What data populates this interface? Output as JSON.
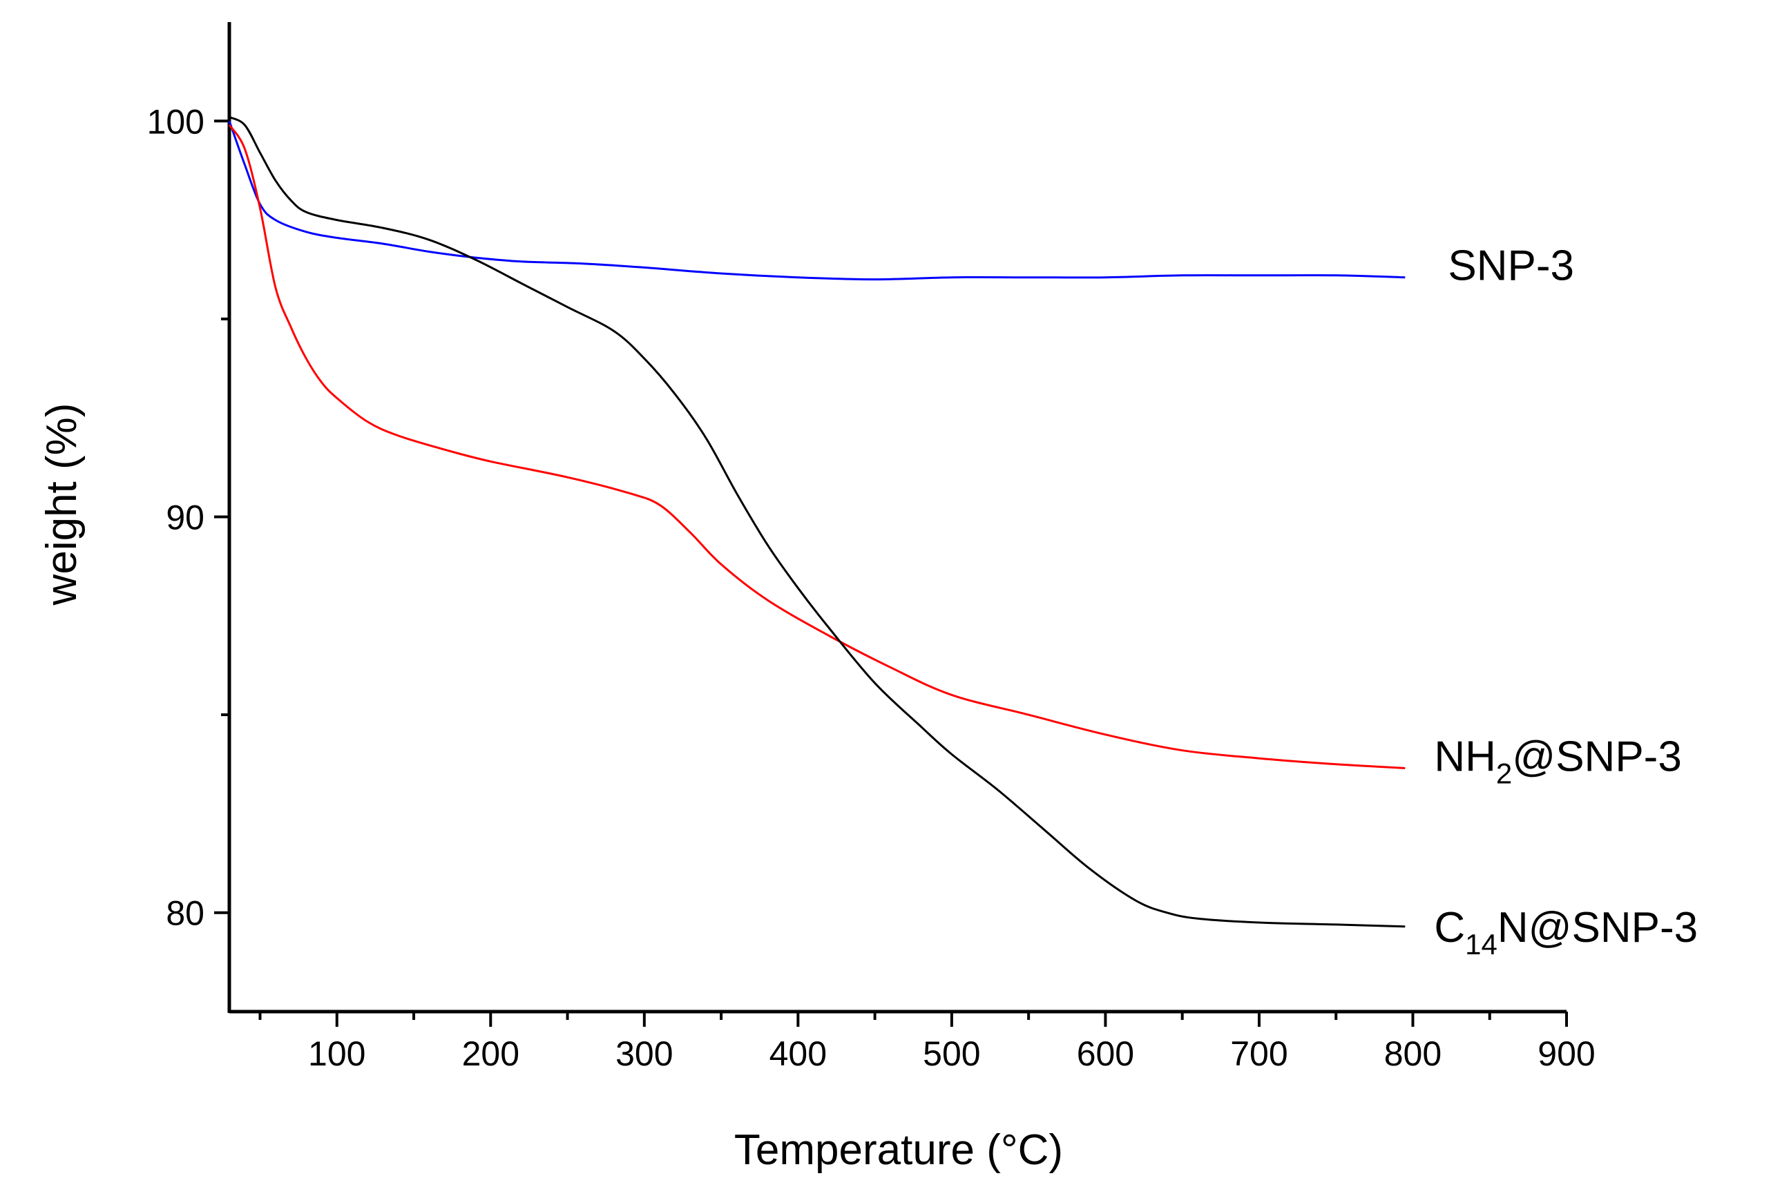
{
  "chart_data": {
    "type": "line",
    "title": "",
    "xlabel": "Temperature (°C)",
    "ylabel": "weight (%)",
    "xlim": [
      30,
      900
    ],
    "ylim": [
      77.5,
      102.5
    ],
    "xticks": [
      100,
      200,
      300,
      400,
      500,
      600,
      700,
      800,
      900
    ],
    "xtick_labels": [
      "100",
      "200",
      "300",
      "400",
      "500",
      "600",
      "700",
      "800",
      "900"
    ],
    "yticks": [
      80,
      90,
      100
    ],
    "ytick_labels": [
      "80",
      "90",
      "100"
    ],
    "grid": false,
    "legend": "inline labels at right end of each curve",
    "series": [
      {
        "name": "SNP-3",
        "label": {
          "main": "SNP-3",
          "sub": "",
          "tail": ""
        },
        "color": "#0000ff",
        "x": [
          30,
          40,
          50,
          60,
          80,
          100,
          130,
          160,
          190,
          220,
          260,
          300,
          350,
          400,
          450,
          500,
          550,
          600,
          650,
          700,
          750,
          795
        ],
        "y": [
          100.0,
          98.9,
          97.9,
          97.5,
          97.2,
          97.05,
          96.9,
          96.7,
          96.55,
          96.45,
          96.4,
          96.3,
          96.15,
          96.05,
          96.0,
          96.05,
          96.05,
          96.05,
          96.1,
          96.1,
          96.1,
          96.05
        ]
      },
      {
        "name": "NH2@SNP-3",
        "label": {
          "main": "NH",
          "sub": "2",
          "tail": "@SNP-3"
        },
        "color": "#ff0000",
        "x": [
          30,
          40,
          50,
          60,
          70,
          80,
          90,
          100,
          120,
          140,
          170,
          200,
          250,
          290,
          310,
          330,
          350,
          380,
          420,
          460,
          500,
          550,
          600,
          650,
          700,
          750,
          795
        ],
        "y": [
          99.9,
          99.3,
          97.8,
          95.8,
          94.8,
          94.0,
          93.4,
          93.0,
          92.4,
          92.05,
          91.7,
          91.4,
          91.0,
          90.6,
          90.3,
          89.6,
          88.8,
          87.9,
          87.0,
          86.2,
          85.5,
          85.0,
          84.5,
          84.1,
          83.9,
          83.75,
          83.65
        ]
      },
      {
        "name": "C14N@SNP-3",
        "label": {
          "main": "C",
          "sub": "14",
          "tail": "N@SNP-3"
        },
        "color": "#000000",
        "x": [
          30,
          40,
          50,
          60,
          70,
          80,
          100,
          130,
          160,
          190,
          220,
          250,
          280,
          300,
          320,
          340,
          360,
          380,
          400,
          420,
          450,
          480,
          500,
          530,
          560,
          590,
          620,
          640,
          660,
          700,
          750,
          795
        ],
        "y": [
          100.1,
          99.9,
          99.2,
          98.5,
          98.0,
          97.7,
          97.5,
          97.3,
          97.0,
          96.5,
          95.9,
          95.3,
          94.7,
          94.0,
          93.1,
          92.0,
          90.6,
          89.3,
          88.2,
          87.2,
          85.8,
          84.7,
          84.0,
          83.1,
          82.1,
          81.1,
          80.3,
          80.0,
          79.85,
          79.75,
          79.7,
          79.65
        ]
      }
    ]
  }
}
